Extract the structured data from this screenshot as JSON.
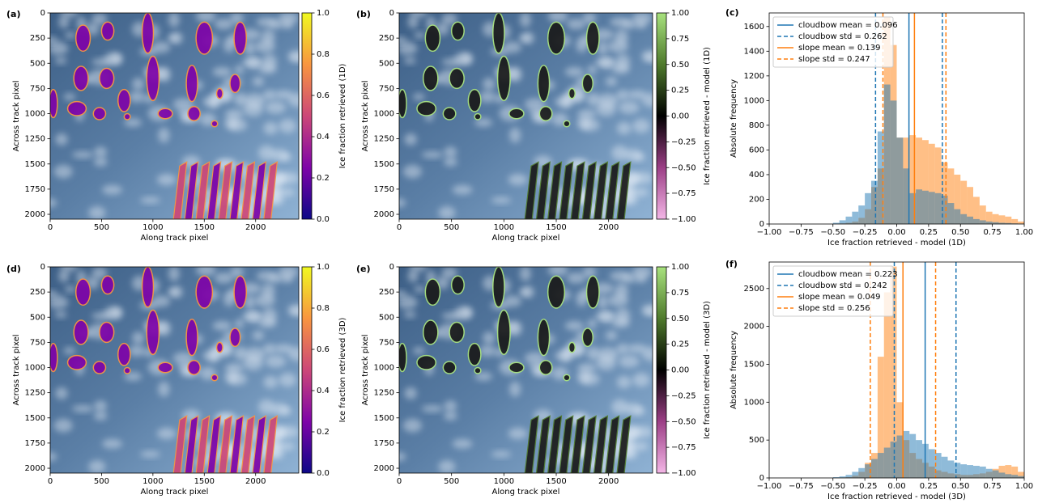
{
  "chart_data": [
    {
      "type": "image",
      "panel_label": "(a)",
      "xlabel": "Along track pixel",
      "ylabel": "Across track pixel",
      "xlim": [
        0,
        2420
      ],
      "ylim": [
        2048,
        0
      ],
      "xticks": [
        0,
        500,
        1000,
        1500,
        2000
      ],
      "yticks": [
        0,
        250,
        500,
        750,
        1000,
        1250,
        1500,
        1750,
        2000
      ],
      "colorbar": {
        "label": "Ice fraction retrieved (1D)",
        "lim": [
          0,
          1
        ],
        "colors": [
          "#0d0887",
          "#7e03a8",
          "#cc4778",
          "#f89540",
          "#f0f921"
        ],
        "ticks": [
          {
            "value": 0,
            "label": "0.0"
          },
          0.2,
          0.4,
          0.6,
          0.8,
          {
            "value": 1,
            "label": "1.0"
          }
        ]
      }
    },
    {
      "type": "image",
      "panel_label": "(b)",
      "xlabel": "Along track pixel",
      "ylabel": "Across track pixel",
      "xlim": [
        0,
        2420
      ],
      "ylim": [
        2048,
        0
      ],
      "xticks": [
        0,
        500,
        1000,
        1500,
        2000
      ],
      "yticks": [
        0,
        250,
        500,
        750,
        1000,
        1250,
        1500,
        1750,
        2000
      ],
      "colorbar": {
        "label": "Ice fraction retrieved - model (1D)",
        "lim": [
          -1,
          1
        ],
        "colors": [
          "#f3b6e6",
          "#9c3f86",
          "#000000",
          "#4f7a2c",
          "#a8e27e"
        ],
        "ticks": [
          {
            "value": -1,
            "label": "−1.00"
          },
          {
            "value": -0.75,
            "label": "−0.75"
          },
          {
            "value": -0.5,
            "label": "−0.50"
          },
          {
            "value": -0.25,
            "label": "−0.25"
          },
          {
            "value": 0,
            "label": "0.00"
          },
          0.25,
          {
            "value": 0.5,
            "label": "0.50"
          },
          0.75,
          {
            "value": 1,
            "label": "1.00"
          }
        ]
      }
    },
    {
      "type": "histogram",
      "panel_label": "(c)",
      "xlabel": "Ice fraction retrieved - model (1D)",
      "ylabel": "Absolute frequency",
      "xlim": [
        -1,
        1
      ],
      "ylim": [
        0,
        1710
      ],
      "xticks": [
        {
          "value": -1,
          "label": "−1.00"
        },
        {
          "value": -0.75,
          "label": "−0.75"
        },
        {
          "value": -0.5,
          "label": "−0.50"
        },
        {
          "value": -0.25,
          "label": "−0.25"
        },
        {
          "value": 0,
          "label": "0.00"
        },
        0.25,
        {
          "value": 0.5,
          "label": "0.50"
        },
        0.75,
        {
          "value": 1,
          "label": "1.00"
        }
      ],
      "yticks": [
        0,
        200,
        400,
        600,
        800,
        1000,
        1200,
        1400,
        1600
      ],
      "bins": [
        -0.5,
        -0.45,
        -0.4,
        -0.35,
        -0.3,
        -0.25,
        -0.2,
        -0.15,
        -0.1,
        -0.05,
        0,
        0.05,
        0.1,
        0.15,
        0.2,
        0.25,
        0.3,
        0.35,
        0.4,
        0.45,
        0.5,
        0.55,
        0.6,
        0.65,
        0.7,
        0.75,
        0.8,
        0.85,
        0.9,
        0.95,
        1.0
      ],
      "series": [
        {
          "color": "#ff7f0e",
          "values": [
            0,
            5,
            10,
            20,
            50,
            120,
            300,
            450,
            1680,
            1450,
            700,
            700,
            720,
            700,
            680,
            650,
            620,
            500,
            450,
            400,
            350,
            300,
            220,
            150,
            100,
            80,
            70,
            60,
            40,
            20
          ]
        },
        {
          "color": "#1f77b4",
          "values": [
            10,
            30,
            60,
            100,
            150,
            250,
            350,
            750,
            1130,
            1000,
            700,
            450,
            250,
            280,
            270,
            260,
            250,
            230,
            170,
            120,
            80,
            60,
            40,
            30,
            20,
            15,
            10,
            8,
            5,
            3
          ]
        }
      ],
      "lines": [
        {
          "label": "cloudbow mean = 0.096",
          "color": "#1f77b4",
          "dashed": false,
          "values": [
            0.096
          ]
        },
        {
          "label": "cloudbow std = 0.262",
          "color": "#1f77b4",
          "dashed": true,
          "values": [
            -0.166,
            0.358
          ]
        },
        {
          "label": "slope mean = 0.139",
          "color": "#ff7f0e",
          "dashed": false,
          "values": [
            0.139
          ]
        },
        {
          "label": "slope std = 0.247",
          "color": "#ff7f0e",
          "dashed": true,
          "values": [
            -0.108,
            0.386
          ]
        }
      ]
    },
    {
      "type": "image",
      "panel_label": "(d)",
      "xlabel": "Along track pixel",
      "ylabel": "Across track pixel",
      "xlim": [
        0,
        2420
      ],
      "ylim": [
        2048,
        0
      ],
      "xticks": [
        0,
        500,
        1000,
        1500,
        2000
      ],
      "yticks": [
        0,
        250,
        500,
        750,
        1000,
        1250,
        1500,
        1750,
        2000
      ],
      "colorbar": {
        "label": "Ice fraction retrieved (3D)",
        "lim": [
          0,
          1
        ],
        "colors": [
          "#0d0887",
          "#7e03a8",
          "#cc4778",
          "#f89540",
          "#f0f921"
        ],
        "ticks": [
          {
            "value": 0,
            "label": "0.0"
          },
          0.2,
          0.4,
          0.6,
          0.8,
          {
            "value": 1,
            "label": "1.0"
          }
        ]
      }
    },
    {
      "type": "image",
      "panel_label": "(e)",
      "xlabel": "Along track pixel",
      "ylabel": "Across track pixel",
      "xlim": [
        0,
        2420
      ],
      "ylim": [
        2048,
        0
      ],
      "xticks": [
        0,
        500,
        1000,
        1500,
        2000
      ],
      "yticks": [
        0,
        250,
        500,
        750,
        1000,
        1250,
        1500,
        1750,
        2000
      ],
      "colorbar": {
        "label": "Ice fraction retrieved - model (3D)",
        "lim": [
          -1,
          1
        ],
        "colors": [
          "#f3b6e6",
          "#9c3f86",
          "#000000",
          "#4f7a2c",
          "#a8e27e"
        ],
        "ticks": [
          {
            "value": -1,
            "label": "−1.00"
          },
          {
            "value": -0.75,
            "label": "−0.75"
          },
          {
            "value": -0.5,
            "label": "−0.50"
          },
          {
            "value": -0.25,
            "label": "−0.25"
          },
          {
            "value": 0,
            "label": "0.00"
          },
          0.25,
          {
            "value": 0.5,
            "label": "0.50"
          },
          0.75,
          {
            "value": 1,
            "label": "1.00"
          }
        ]
      }
    },
    {
      "type": "histogram",
      "panel_label": "(f)",
      "xlabel": "Ice fraction retrieved - model (3D)",
      "ylabel": "Absolute frequency",
      "xlim": [
        -1,
        1
      ],
      "ylim": [
        0,
        2850
      ],
      "xticks": [
        {
          "value": -1,
          "label": "−1.00"
        },
        {
          "value": -0.75,
          "label": "−0.75"
        },
        {
          "value": -0.5,
          "label": "−0.50"
        },
        {
          "value": -0.25,
          "label": "−0.25"
        },
        {
          "value": 0,
          "label": "0.00"
        },
        0.25,
        {
          "value": 0.5,
          "label": "0.50"
        },
        0.75,
        {
          "value": 1,
          "label": "1.00"
        }
      ],
      "yticks": [
        0,
        500,
        1000,
        1500,
        2000,
        2500
      ],
      "bins": [
        -0.5,
        -0.45,
        -0.4,
        -0.35,
        -0.3,
        -0.25,
        -0.2,
        -0.15,
        -0.1,
        -0.05,
        0,
        0.05,
        0.1,
        0.15,
        0.2,
        0.25,
        0.3,
        0.35,
        0.4,
        0.45,
        0.5,
        0.55,
        0.6,
        0.65,
        0.7,
        0.75,
        0.8,
        0.85,
        0.9,
        0.95,
        1.0
      ],
      "series": [
        {
          "color": "#ff7f0e",
          "values": [
            0,
            5,
            10,
            30,
            80,
            200,
            330,
            1600,
            2450,
            2790,
            1000,
            500,
            330,
            250,
            200,
            150,
            100,
            80,
            60,
            50,
            40,
            40,
            50,
            60,
            80,
            120,
            160,
            170,
            150,
            80
          ]
        },
        {
          "color": "#1f77b4",
          "values": [
            10,
            20,
            40,
            80,
            130,
            180,
            250,
            330,
            400,
            480,
            560,
            620,
            580,
            500,
            450,
            380,
            330,
            280,
            230,
            200,
            180,
            170,
            160,
            150,
            120,
            100,
            70,
            50,
            40,
            25
          ]
        }
      ],
      "lines": [
        {
          "label": "cloudbow mean = 0.223",
          "color": "#1f77b4",
          "dashed": false,
          "values": [
            0.223
          ]
        },
        {
          "label": "cloudbow std = 0.242",
          "color": "#1f77b4",
          "dashed": true,
          "values": [
            -0.019,
            0.465
          ]
        },
        {
          "label": "slope mean = 0.049",
          "color": "#ff7f0e",
          "dashed": false,
          "values": [
            0.049
          ]
        },
        {
          "label": "slope std = 0.256",
          "color": "#ff7f0e",
          "dashed": true,
          "values": [
            -0.207,
            0.305
          ]
        }
      ]
    }
  ]
}
